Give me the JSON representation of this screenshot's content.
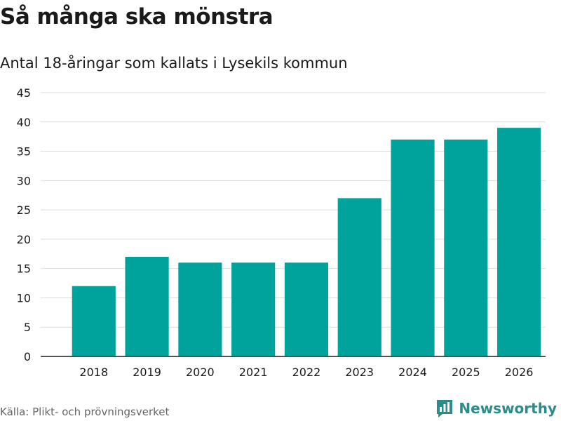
{
  "colors": {
    "bar": "#00a39b",
    "grid": "#dcdcdc",
    "axis": "#1a1a1a",
    "brand": "#2e8b8b"
  },
  "chart_data": {
    "type": "bar",
    "title": "Så många ska mönstra",
    "subtitle": "Antal 18-åringar som kallats i Lysekils kommun",
    "categories": [
      "2018",
      "2019",
      "2020",
      "2021",
      "2022",
      "2023",
      "2024",
      "2025",
      "2026"
    ],
    "values": [
      12,
      17,
      16,
      16,
      16,
      27,
      37,
      37,
      39
    ],
    "xlabel": "",
    "ylabel": "",
    "ylim": [
      0,
      45
    ],
    "yticks": [
      "0",
      "5",
      "10",
      "15",
      "20",
      "25",
      "30",
      "35",
      "40",
      "45"
    ],
    "grid": true
  },
  "footer": {
    "source": "Källa: Plikt- och prövningsverket",
    "brand": "Newsworthy",
    "brand_icon": "bar-chart-speech-icon"
  }
}
